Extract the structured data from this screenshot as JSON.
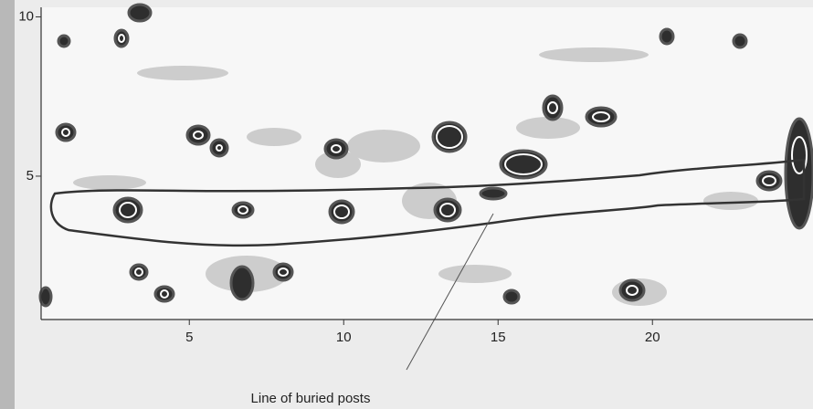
{
  "chart_data": {
    "type": "contour",
    "annotation": "Line of buried posts",
    "xlim": [
      0.2,
      25.2
    ],
    "xticks": [
      5,
      10,
      15,
      20
    ],
    "ylim": [
      0.5,
      10.3
    ],
    "yticks": [
      5,
      10
    ]
  }
}
